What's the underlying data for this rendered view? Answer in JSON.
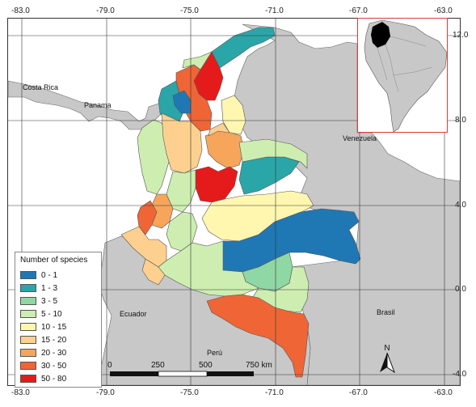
{
  "legend": {
    "title": "Number of species",
    "items": [
      {
        "label": "0 - 1",
        "color": "#1f78b4"
      },
      {
        "label": "1 - 3",
        "color": "#2aa6a9"
      },
      {
        "label": "3 - 5",
        "color": "#8fd7a4"
      },
      {
        "label": "5 - 10",
        "color": "#cdeeb0"
      },
      {
        "label": "10 - 15",
        "color": "#fff7b0"
      },
      {
        "label": "15 - 20",
        "color": "#fdd08f"
      },
      {
        "label": "20 - 30",
        "color": "#f6a55b"
      },
      {
        "label": "30 - 50",
        "color": "#ef6536"
      },
      {
        "label": "50 - 80",
        "color": "#e51b1b"
      }
    ]
  },
  "axes": {
    "lon_labels": [
      "-83.0",
      "-79.0",
      "-75.0",
      "-71.0",
      "-67.0",
      "-63.0"
    ],
    "lat_labels": [
      "12.0",
      "8.0",
      "4.0",
      "0.0",
      "-4.0"
    ]
  },
  "countries": {
    "costa_rica": "Costa Rica",
    "panama": "Panama",
    "venezuela": "Venezuela",
    "ecuador": "Ecuador",
    "peru": "Perú",
    "brasil": "Brasil"
  },
  "scalebar": {
    "labels": [
      "0",
      "250",
      "500",
      "750 km"
    ]
  },
  "north_arrow": {
    "letter": "N",
    "icon": "north-arrow-icon"
  },
  "colors": {
    "other_land": "#c8c8c8",
    "sea": "#ffffff",
    "inset_border": "#e03a3a",
    "colombia_inset": "#000000"
  }
}
